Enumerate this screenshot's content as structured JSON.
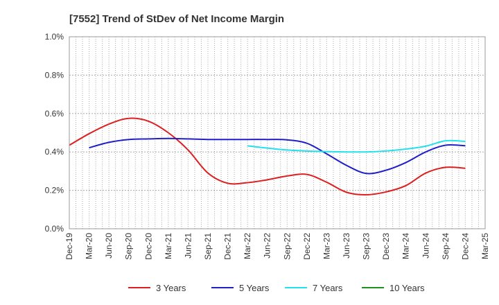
{
  "chart_data": {
    "type": "line",
    "title": "[7552]  Trend of StDev of Net Income Margin",
    "xlabel": "",
    "ylabel": "",
    "x": [
      "Dec-19",
      "Mar-20",
      "Jun-20",
      "Sep-20",
      "Dec-20",
      "Mar-21",
      "Jun-21",
      "Sep-21",
      "Dec-21",
      "Mar-22",
      "Jun-22",
      "Sep-22",
      "Dec-22",
      "Mar-23",
      "Jun-23",
      "Sep-23",
      "Dec-23",
      "Mar-24",
      "Jun-24",
      "Sep-24",
      "Dec-24",
      "Mar-25"
    ],
    "ylim": [
      0,
      1.0
    ],
    "y_ticks": [
      "0.0%",
      "0.2%",
      "0.4%",
      "0.6%",
      "0.8%",
      "1.0%"
    ],
    "grid": true,
    "legend_position": "bottom",
    "series": [
      {
        "name": "3 Years",
        "color": "#dd1f1f",
        "values": [
          0.435,
          0.495,
          0.545,
          0.575,
          0.56,
          0.5,
          0.41,
          0.29,
          0.237,
          0.24,
          0.255,
          0.275,
          0.283,
          0.242,
          0.19,
          0.177,
          0.192,
          0.225,
          0.29,
          0.32,
          0.315,
          null
        ]
      },
      {
        "name": "5 Years",
        "color": "#1f1fc8",
        "values": [
          null,
          0.422,
          0.45,
          0.465,
          0.468,
          0.47,
          0.468,
          0.465,
          0.465,
          0.465,
          0.465,
          0.463,
          0.445,
          0.39,
          0.33,
          0.288,
          0.305,
          0.345,
          0.4,
          0.435,
          0.432,
          null
        ]
      },
      {
        "name": "7 Years",
        "color": "#22e0ee",
        "values": [
          null,
          null,
          null,
          null,
          null,
          null,
          null,
          null,
          null,
          0.432,
          0.42,
          0.41,
          0.405,
          0.402,
          0.4,
          0.4,
          0.405,
          0.415,
          0.43,
          0.458,
          0.455,
          null
        ]
      },
      {
        "name": "10 Years",
        "color": "#1f8f1f",
        "values": [
          null,
          null,
          null,
          null,
          null,
          null,
          null,
          null,
          null,
          null,
          null,
          null,
          null,
          null,
          null,
          null,
          null,
          null,
          null,
          null,
          null,
          null
        ]
      }
    ]
  }
}
